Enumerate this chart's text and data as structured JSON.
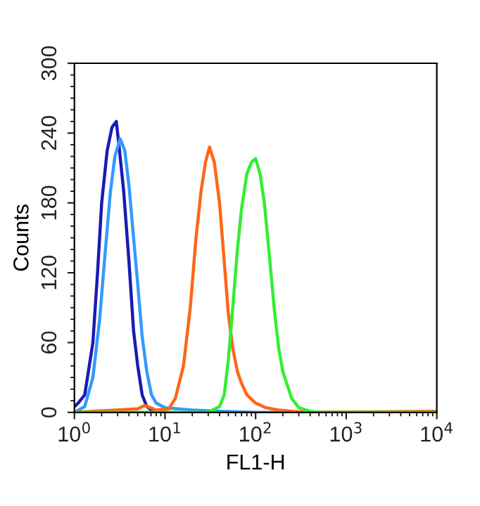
{
  "chart_data": {
    "type": "line",
    "xlabel": "FL1-H",
    "ylabel": "Counts",
    "log": "x",
    "xlim": [
      1,
      10000
    ],
    "ylim": [
      0,
      300
    ],
    "xticks": [
      {
        "value": 1,
        "label": "10$^{0}$"
      },
      {
        "value": 10,
        "label": "10$^{1}$"
      },
      {
        "value": 100,
        "label": "10$^{2}$"
      },
      {
        "value": 1000,
        "label": "10$^{3}$"
      },
      {
        "value": 10000,
        "label": "10$^{4}$"
      }
    ],
    "yticks": [
      0,
      60,
      120,
      180,
      240,
      300
    ],
    "grid": false,
    "legend": false,
    "marker": "none",
    "line_style": "solid",
    "series": [
      {
        "color": "#1a1ab4",
        "x": [
          1.0,
          1.1,
          1.3,
          1.6,
          1.8,
          2.0,
          2.3,
          2.6,
          2.9,
          3.1,
          3.5,
          4.0,
          4.5,
          5.0,
          5.6,
          6.3,
          7.1,
          8,
          10
        ],
        "values": [
          5,
          8,
          15,
          60,
          120,
          180,
          225,
          245,
          250,
          230,
          190,
          130,
          70,
          40,
          15,
          5,
          2,
          0,
          0
        ]
      },
      {
        "color": "#3399ff",
        "x": [
          1.0,
          1.3,
          1.6,
          1.9,
          2.2,
          2.5,
          2.8,
          3.2,
          3.6,
          4.0,
          4.5,
          5.0,
          5.6,
          6.3,
          7.1,
          8.0,
          10,
          14,
          20,
          40,
          100,
          10000
        ],
        "values": [
          0,
          5,
          30,
          80,
          140,
          190,
          220,
          235,
          225,
          195,
          150,
          110,
          65,
          35,
          15,
          8,
          4,
          3,
          2,
          1,
          0,
          0
        ]
      },
      {
        "color": "#ff6619",
        "x": [
          1,
          5,
          6,
          8,
          11,
          13,
          16,
          19,
          22,
          25,
          28,
          31,
          35,
          40,
          45,
          50,
          56,
          63,
          70,
          80,
          100,
          130,
          180,
          250,
          400,
          10000
        ],
        "values": [
          0,
          3,
          6,
          2,
          3,
          12,
          40,
          90,
          150,
          190,
          215,
          228,
          215,
          180,
          130,
          85,
          55,
          35,
          25,
          15,
          8,
          4,
          2,
          1,
          0,
          1
        ]
      },
      {
        "color": "#33ee33",
        "x": [
          1,
          30,
          40,
          45,
          50,
          56,
          63,
          70,
          80,
          90,
          100,
          112,
          125,
          140,
          160,
          180,
          200,
          250,
          300,
          400,
          500,
          10000
        ],
        "values": [
          0,
          0,
          5,
          15,
          45,
          90,
          140,
          175,
          205,
          215,
          218,
          205,
          180,
          140,
          90,
          55,
          35,
          12,
          4,
          1,
          0,
          0
        ]
      }
    ]
  }
}
